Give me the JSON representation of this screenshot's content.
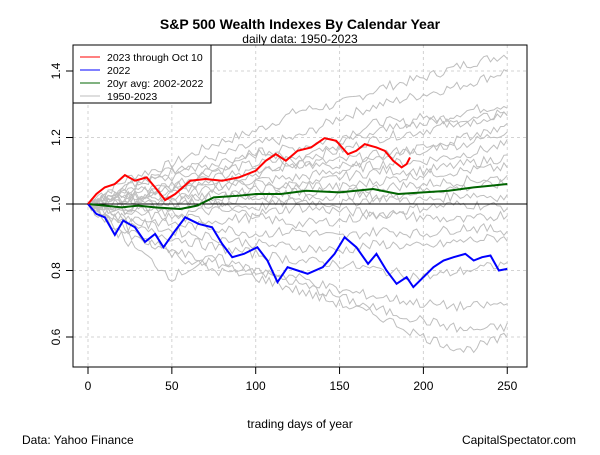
{
  "chart_data": {
    "type": "line",
    "title": "S&P 500 Wealth Indexes By Calendar Year",
    "subtitle": "daily data: 1950-2023",
    "xlabel": "trading days of year",
    "ylabel": "",
    "xlim": [
      -10,
      262
    ],
    "ylim": [
      0.48,
      1.52
    ],
    "xticks": [
      0,
      50,
      100,
      150,
      200,
      250
    ],
    "yticks": [
      0.6,
      0.8,
      1.0,
      1.2,
      1.4
    ],
    "grid": true,
    "reference_line": 1.0,
    "legend_placement": "top-left",
    "legend": [
      "2023 through Oct 10",
      "2022",
      "20yr avg: 2002-2022",
      "1950-2023"
    ],
    "colors": {
      "2023": "#ff0000",
      "2022": "#0000ff",
      "avg": "#006400",
      "history": "#bebebe"
    },
    "series": [
      {
        "name": "2023 through Oct 10",
        "x": [
          0,
          5,
          10,
          16,
          22,
          28,
          35,
          40,
          46,
          52,
          61,
          70,
          80,
          90,
          100,
          106,
          112,
          118,
          125,
          133,
          141,
          148,
          155,
          160,
          165,
          172,
          177,
          182,
          187,
          190,
          192
        ],
        "y": [
          1.0,
          1.03,
          1.05,
          1.06,
          1.087,
          1.07,
          1.08,
          1.05,
          1.012,
          1.03,
          1.07,
          1.075,
          1.07,
          1.08,
          1.1,
          1.13,
          1.15,
          1.13,
          1.16,
          1.17,
          1.198,
          1.19,
          1.15,
          1.16,
          1.18,
          1.17,
          1.16,
          1.13,
          1.11,
          1.12,
          1.14
        ]
      },
      {
        "name": "2022",
        "x": [
          0,
          5,
          10,
          16,
          21,
          28,
          34,
          40,
          45,
          52,
          58,
          66,
          74,
          80,
          86,
          93,
          101,
          107,
          113,
          119,
          125,
          131,
          140,
          147,
          153,
          160,
          167,
          172,
          178,
          184,
          190,
          194,
          200,
          206,
          212,
          218,
          225,
          230,
          235,
          240,
          245,
          250
        ],
        "y": [
          1.0,
          0.97,
          0.96,
          0.907,
          0.95,
          0.93,
          0.886,
          0.91,
          0.87,
          0.92,
          0.96,
          0.94,
          0.93,
          0.88,
          0.84,
          0.85,
          0.87,
          0.83,
          0.765,
          0.81,
          0.8,
          0.79,
          0.81,
          0.85,
          0.9,
          0.87,
          0.82,
          0.85,
          0.8,
          0.76,
          0.78,
          0.75,
          0.78,
          0.81,
          0.83,
          0.84,
          0.85,
          0.83,
          0.84,
          0.845,
          0.8,
          0.805
        ]
      },
      {
        "name": "20yr avg: 2002-2022",
        "x": [
          0,
          10,
          20,
          30,
          40,
          55,
          65,
          75,
          90,
          100,
          115,
          130,
          150,
          170,
          185,
          200,
          215,
          230,
          240,
          250
        ],
        "y": [
          1.0,
          0.995,
          0.99,
          0.995,
          0.99,
          0.985,
          0.995,
          1.02,
          1.025,
          1.03,
          1.03,
          1.04,
          1.035,
          1.045,
          1.03,
          1.035,
          1.04,
          1.05,
          1.055,
          1.06
        ]
      }
    ],
    "history_x": [
      0,
      25,
      50,
      75,
      100,
      125,
      150,
      175,
      200,
      225,
      250
    ],
    "history": [
      [
        1.0,
        1.08,
        1.12,
        1.18,
        1.22,
        1.28,
        1.3,
        1.35,
        1.38,
        1.42,
        1.45
      ],
      [
        1.0,
        1.05,
        1.1,
        1.14,
        1.18,
        1.2,
        1.26,
        1.3,
        1.33,
        1.36,
        1.4
      ],
      [
        1.0,
        1.06,
        1.08,
        1.1,
        1.15,
        1.17,
        1.2,
        1.25,
        1.24,
        1.28,
        1.3
      ],
      [
        1.0,
        1.03,
        1.06,
        1.1,
        1.12,
        1.14,
        1.16,
        1.2,
        1.22,
        1.25,
        1.27
      ],
      [
        1.0,
        1.04,
        1.05,
        1.07,
        1.09,
        1.12,
        1.13,
        1.15,
        1.17,
        1.18,
        1.22
      ],
      [
        1.0,
        1.02,
        1.04,
        1.06,
        1.07,
        1.08,
        1.1,
        1.12,
        1.13,
        1.15,
        1.18
      ],
      [
        1.0,
        1.03,
        1.02,
        1.05,
        1.06,
        1.05,
        1.08,
        1.1,
        1.1,
        1.12,
        1.14
      ],
      [
        1.0,
        1.01,
        1.03,
        1.02,
        1.04,
        1.06,
        1.05,
        1.07,
        1.09,
        1.1,
        1.11
      ],
      [
        1.0,
        1.02,
        1.0,
        1.03,
        1.02,
        1.04,
        1.03,
        1.05,
        1.06,
        1.07,
        1.08
      ],
      [
        1.0,
        0.99,
        1.01,
        1.0,
        1.02,
        1.01,
        1.03,
        1.02,
        1.04,
        1.05,
        1.06
      ],
      [
        1.0,
        0.98,
        0.99,
        1.0,
        0.99,
        1.01,
        1.0,
        1.02,
        1.01,
        1.03,
        1.02
      ],
      [
        1.0,
        0.99,
        0.97,
        0.98,
        0.97,
        0.99,
        0.98,
        0.97,
        0.99,
        1.0,
        0.99
      ],
      [
        1.0,
        0.97,
        0.96,
        0.95,
        0.96,
        0.94,
        0.95,
        0.97,
        0.96,
        0.95,
        0.97
      ],
      [
        1.0,
        0.96,
        0.94,
        0.93,
        0.91,
        0.92,
        0.9,
        0.92,
        0.91,
        0.93,
        0.92
      ],
      [
        1.0,
        0.95,
        0.92,
        0.9,
        0.88,
        0.87,
        0.86,
        0.88,
        0.87,
        0.89,
        0.9
      ],
      [
        1.0,
        0.93,
        0.9,
        0.87,
        0.85,
        0.83,
        0.82,
        0.8,
        0.78,
        0.8,
        0.82
      ],
      [
        1.0,
        0.9,
        0.86,
        0.82,
        0.8,
        0.78,
        0.74,
        0.72,
        0.7,
        0.69,
        0.7
      ],
      [
        1.0,
        0.88,
        0.78,
        0.84,
        0.8,
        0.76,
        0.72,
        0.68,
        0.65,
        0.62,
        0.63
      ],
      [
        1.0,
        0.92,
        0.85,
        0.8,
        0.78,
        0.74,
        0.7,
        0.66,
        0.6,
        0.56,
        0.6
      ],
      [
        1.0,
        1.06,
        1.1,
        1.12,
        1.16,
        1.13,
        1.18,
        1.22,
        1.26,
        1.24,
        1.28
      ],
      [
        1.0,
        1.01,
        1.05,
        1.08,
        1.1,
        1.12,
        1.11,
        1.14,
        1.16,
        1.2,
        1.23
      ]
    ]
  },
  "footer": {
    "source": "Data: Yahoo Finance",
    "brand": "CapitalSpectator.com"
  }
}
